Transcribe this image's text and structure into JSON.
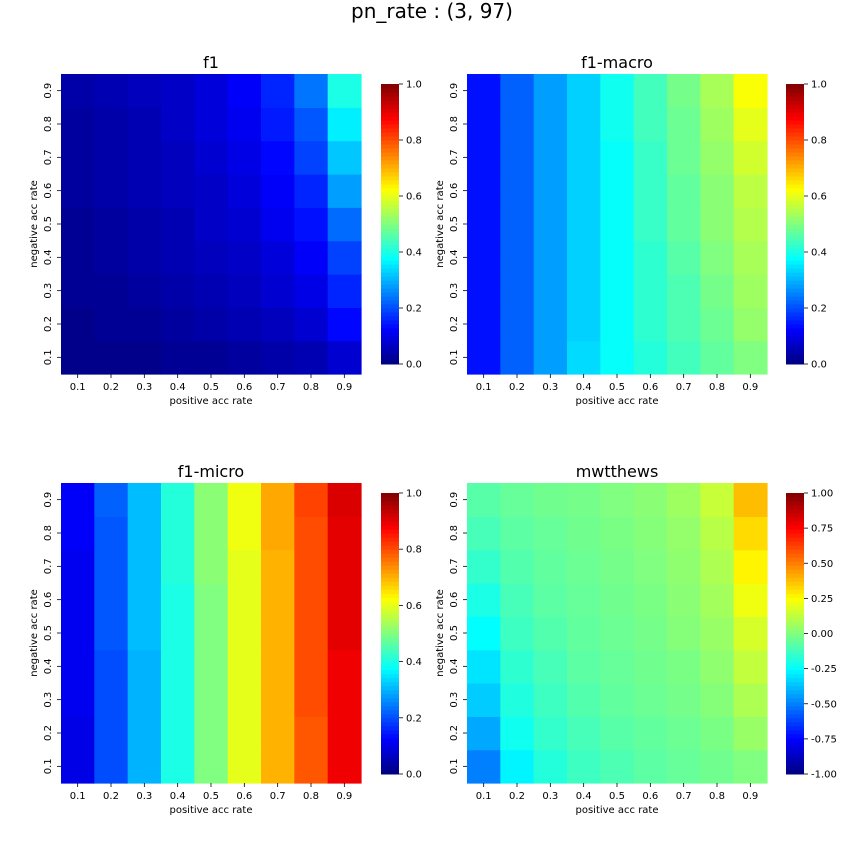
{
  "figure": {
    "suptitle": "pn_rate : (3, 97)"
  },
  "chart_data": [
    {
      "type": "heatmap",
      "title": "f1",
      "xlabel": "positive acc rate",
      "ylabel": "negative acc rate",
      "x_categories": [
        "0.1",
        "0.2",
        "0.3",
        "0.4",
        "0.5",
        "0.6",
        "0.7",
        "0.8",
        "0.9"
      ],
      "y_categories": [
        "0.1",
        "0.2",
        "0.3",
        "0.4",
        "0.5",
        "0.6",
        "0.7",
        "0.8",
        "0.9"
      ],
      "colormap": "jet",
      "vmin": 0,
      "vmax": 1,
      "colorbar_ticks": [
        "0.0",
        "0.2",
        "0.4",
        "0.6",
        "0.8",
        "1.0"
      ],
      "values": [
        [
          0.01,
          0.01,
          0.01,
          0.02,
          0.02,
          0.03,
          0.04,
          0.05,
          0.08
        ],
        [
          0.01,
          0.02,
          0.02,
          0.03,
          0.04,
          0.05,
          0.06,
          0.08,
          0.13
        ],
        [
          0.02,
          0.02,
          0.03,
          0.04,
          0.05,
          0.06,
          0.08,
          0.1,
          0.16
        ],
        [
          0.02,
          0.03,
          0.04,
          0.05,
          0.06,
          0.07,
          0.09,
          0.12,
          0.19
        ],
        [
          0.02,
          0.03,
          0.04,
          0.05,
          0.07,
          0.08,
          0.11,
          0.14,
          0.23
        ],
        [
          0.03,
          0.04,
          0.05,
          0.06,
          0.07,
          0.09,
          0.12,
          0.16,
          0.28
        ],
        [
          0.03,
          0.04,
          0.05,
          0.06,
          0.08,
          0.1,
          0.13,
          0.19,
          0.32
        ],
        [
          0.03,
          0.04,
          0.05,
          0.07,
          0.09,
          0.11,
          0.15,
          0.21,
          0.36
        ],
        [
          0.04,
          0.05,
          0.06,
          0.07,
          0.09,
          0.12,
          0.16,
          0.24,
          0.4
        ]
      ]
    },
    {
      "type": "heatmap",
      "title": "f1-macro",
      "xlabel": "positive acc rate",
      "ylabel": "negative acc rate",
      "x_categories": [
        "0.1",
        "0.2",
        "0.3",
        "0.4",
        "0.5",
        "0.6",
        "0.7",
        "0.8",
        "0.9"
      ],
      "y_categories": [
        "0.1",
        "0.2",
        "0.3",
        "0.4",
        "0.5",
        "0.6",
        "0.7",
        "0.8",
        "0.9"
      ],
      "colormap": "jet",
      "vmin": 0,
      "vmax": 1,
      "colorbar_ticks": [
        "0.0",
        "0.2",
        "0.4",
        "0.6",
        "0.8",
        "1.0"
      ],
      "values": [
        [
          0.14,
          0.22,
          0.28,
          0.34,
          0.38,
          0.41,
          0.44,
          0.47,
          0.5
        ],
        [
          0.14,
          0.22,
          0.28,
          0.33,
          0.38,
          0.42,
          0.45,
          0.48,
          0.52
        ],
        [
          0.14,
          0.22,
          0.28,
          0.33,
          0.38,
          0.42,
          0.45,
          0.49,
          0.53
        ],
        [
          0.14,
          0.22,
          0.28,
          0.33,
          0.38,
          0.42,
          0.46,
          0.5,
          0.54
        ],
        [
          0.14,
          0.22,
          0.28,
          0.33,
          0.38,
          0.43,
          0.47,
          0.51,
          0.55
        ],
        [
          0.14,
          0.22,
          0.28,
          0.33,
          0.38,
          0.43,
          0.47,
          0.51,
          0.56
        ],
        [
          0.14,
          0.22,
          0.28,
          0.33,
          0.38,
          0.43,
          0.48,
          0.52,
          0.58
        ],
        [
          0.14,
          0.22,
          0.28,
          0.33,
          0.39,
          0.44,
          0.48,
          0.53,
          0.6
        ],
        [
          0.14,
          0.22,
          0.28,
          0.33,
          0.39,
          0.44,
          0.49,
          0.54,
          0.62
        ]
      ]
    },
    {
      "type": "heatmap",
      "title": "f1-micro",
      "xlabel": "positive acc rate",
      "ylabel": "negative acc rate",
      "x_categories": [
        "0.1",
        "0.2",
        "0.3",
        "0.4",
        "0.5",
        "0.6",
        "0.7",
        "0.8",
        "0.9"
      ],
      "y_categories": [
        "0.1",
        "0.2",
        "0.3",
        "0.4",
        "0.5",
        "0.6",
        "0.7",
        "0.8",
        "0.9"
      ],
      "colormap": "jet",
      "vmin": 0,
      "vmax": 1,
      "colorbar_ticks": [
        "0.0",
        "0.2",
        "0.4",
        "0.6",
        "0.8",
        "1.0"
      ],
      "values": [
        [
          0.1,
          0.2,
          0.3,
          0.4,
          0.5,
          0.6,
          0.7,
          0.79,
          0.89
        ],
        [
          0.1,
          0.2,
          0.3,
          0.4,
          0.5,
          0.6,
          0.7,
          0.79,
          0.89
        ],
        [
          0.11,
          0.2,
          0.3,
          0.4,
          0.5,
          0.6,
          0.7,
          0.8,
          0.89
        ],
        [
          0.11,
          0.2,
          0.3,
          0.4,
          0.5,
          0.6,
          0.7,
          0.8,
          0.89
        ],
        [
          0.11,
          0.21,
          0.31,
          0.4,
          0.5,
          0.6,
          0.7,
          0.8,
          0.9
        ],
        [
          0.11,
          0.21,
          0.31,
          0.4,
          0.5,
          0.6,
          0.7,
          0.8,
          0.9
        ],
        [
          0.11,
          0.21,
          0.31,
          0.41,
          0.51,
          0.6,
          0.7,
          0.8,
          0.9
        ],
        [
          0.12,
          0.21,
          0.31,
          0.41,
          0.51,
          0.61,
          0.71,
          0.8,
          0.9
        ],
        [
          0.12,
          0.22,
          0.31,
          0.41,
          0.51,
          0.61,
          0.71,
          0.81,
          0.91
        ]
      ]
    },
    {
      "type": "heatmap",
      "title": "mwtthews",
      "xlabel": "positive acc rate",
      "ylabel": "negative acc rate",
      "x_categories": [
        "0.1",
        "0.2",
        "0.3",
        "0.4",
        "0.5",
        "0.6",
        "0.7",
        "0.8",
        "0.9"
      ],
      "y_categories": [
        "0.1",
        "0.2",
        "0.3",
        "0.4",
        "0.5",
        "0.6",
        "0.7",
        "0.8",
        "0.9"
      ],
      "colormap": "jet",
      "vmin": -1,
      "vmax": 1,
      "colorbar_ticks": [
        "-1.00",
        "-0.75",
        "-0.50",
        "-0.25",
        "0.00",
        "0.25",
        "0.50",
        "0.75",
        "1.00"
      ],
      "values": [
        [
          -0.5,
          -0.27,
          -0.18,
          -0.13,
          -0.1,
          -0.07,
          -0.05,
          -0.03,
          0.0
        ],
        [
          -0.42,
          -0.22,
          -0.15,
          -0.11,
          -0.08,
          -0.06,
          -0.04,
          -0.01,
          0.05
        ],
        [
          -0.35,
          -0.19,
          -0.13,
          -0.09,
          -0.06,
          -0.04,
          -0.02,
          0.01,
          0.09
        ],
        [
          -0.3,
          -0.16,
          -0.11,
          -0.07,
          -0.05,
          -0.03,
          -0.01,
          0.03,
          0.13
        ],
        [
          -0.25,
          -0.13,
          -0.09,
          -0.06,
          -0.04,
          -0.02,
          0.01,
          0.05,
          0.17
        ],
        [
          -0.2,
          -0.11,
          -0.07,
          -0.05,
          -0.03,
          -0.01,
          0.02,
          0.07,
          0.22
        ],
        [
          -0.15,
          -0.09,
          -0.06,
          -0.04,
          -0.02,
          0.0,
          0.03,
          0.09,
          0.27
        ],
        [
          -0.11,
          -0.07,
          -0.05,
          -0.03,
          -0.01,
          0.01,
          0.04,
          0.11,
          0.32
        ],
        [
          -0.08,
          -0.05,
          -0.03,
          -0.02,
          0.0,
          0.02,
          0.06,
          0.14,
          0.38
        ]
      ]
    }
  ]
}
